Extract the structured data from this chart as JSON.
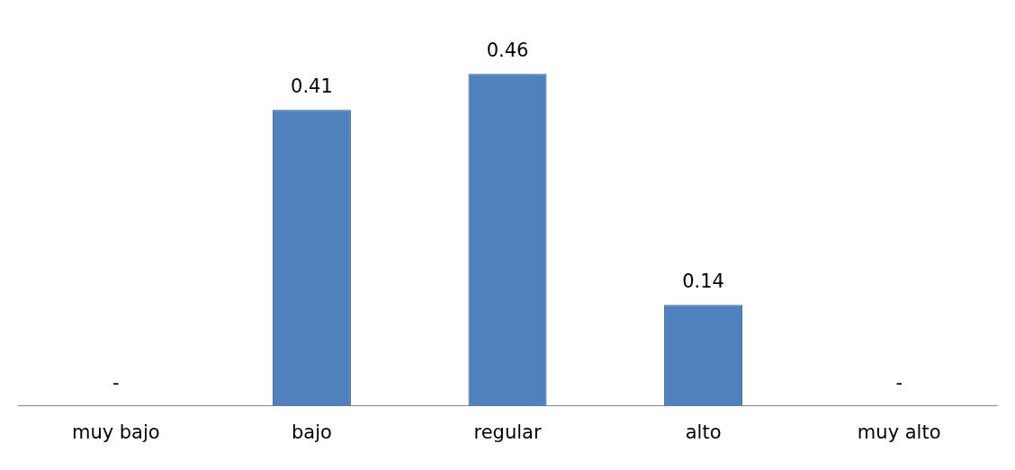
{
  "chart_data": {
    "type": "bar",
    "categories": [
      "muy bajo",
      "bajo",
      "regular",
      "alto",
      "muy alto"
    ],
    "values": [
      0,
      0.41,
      0.46,
      0.14,
      0
    ],
    "value_labels": [
      "-",
      "0.41",
      "0.46",
      "0.14",
      "-"
    ],
    "color": "#4f81bd",
    "tick_labels": "x",
    "grid": false,
    "legend": false
  }
}
